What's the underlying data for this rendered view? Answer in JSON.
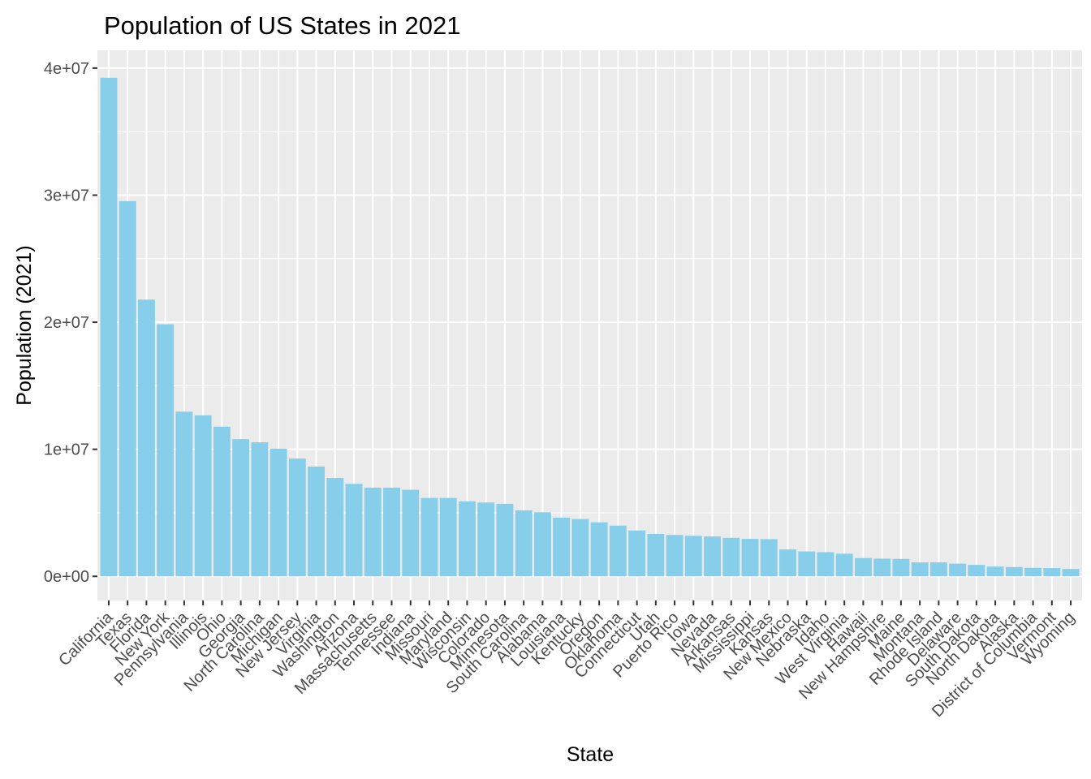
{
  "chart_data": {
    "type": "bar",
    "title": "Population of US States in 2021",
    "xlabel": "State",
    "ylabel": "Population (2021)",
    "ylim": [
      -1900000,
      41400000
    ],
    "y_ticks": [
      0,
      10000000,
      20000000,
      30000000,
      40000000
    ],
    "y_tick_labels": [
      "0e+00",
      "1e+07",
      "2e+07",
      "3e+07",
      "4e+07"
    ],
    "grid": true,
    "legend": "none",
    "colors": {
      "bar": "#87CEEB",
      "panel": "#EBEBEB",
      "grid_major": "#FFFFFF",
      "tick": "#333333",
      "tick_text": "#4D4D4D"
    },
    "categories": [
      "California",
      "Texas",
      "Florida",
      "New York",
      "Pennsylvania",
      "Illinois",
      "Ohio",
      "Georgia",
      "North Carolina",
      "Michigan",
      "New Jersey",
      "Virginia",
      "Washington",
      "Arizona",
      "Massachusetts",
      "Tennessee",
      "Indiana",
      "Missouri",
      "Maryland",
      "Wisconsin",
      "Colorado",
      "Minnesota",
      "South Carolina",
      "Alabama",
      "Louisiana",
      "Kentucky",
      "Oregon",
      "Oklahoma",
      "Connecticut",
      "Utah",
      "Puerto Rico",
      "Iowa",
      "Nevada",
      "Arkansas",
      "Mississippi",
      "Kansas",
      "New Mexico",
      "Nebraska",
      "Idaho",
      "West Virginia",
      "Hawaii",
      "New Hampshire",
      "Maine",
      "Montana",
      "Rhode Island",
      "Delaware",
      "South Dakota",
      "North Dakota",
      "Alaska",
      "District of Columbia",
      "Vermont",
      "Wyoming"
    ],
    "values": [
      39240000,
      29530000,
      21780000,
      19840000,
      12960000,
      12670000,
      11780000,
      10800000,
      10550000,
      10050000,
      9270000,
      8640000,
      7740000,
      7280000,
      6980000,
      6980000,
      6810000,
      6170000,
      6170000,
      5900000,
      5810000,
      5710000,
      5190000,
      5040000,
      4620000,
      4510000,
      4250000,
      3990000,
      3610000,
      3340000,
      3260000,
      3190000,
      3140000,
      3030000,
      2950000,
      2930000,
      2120000,
      1960000,
      1900000,
      1780000,
      1440000,
      1390000,
      1370000,
      1100000,
      1100000,
      1000000,
      900000,
      770000,
      730000,
      670000,
      650000,
      580000
    ]
  }
}
